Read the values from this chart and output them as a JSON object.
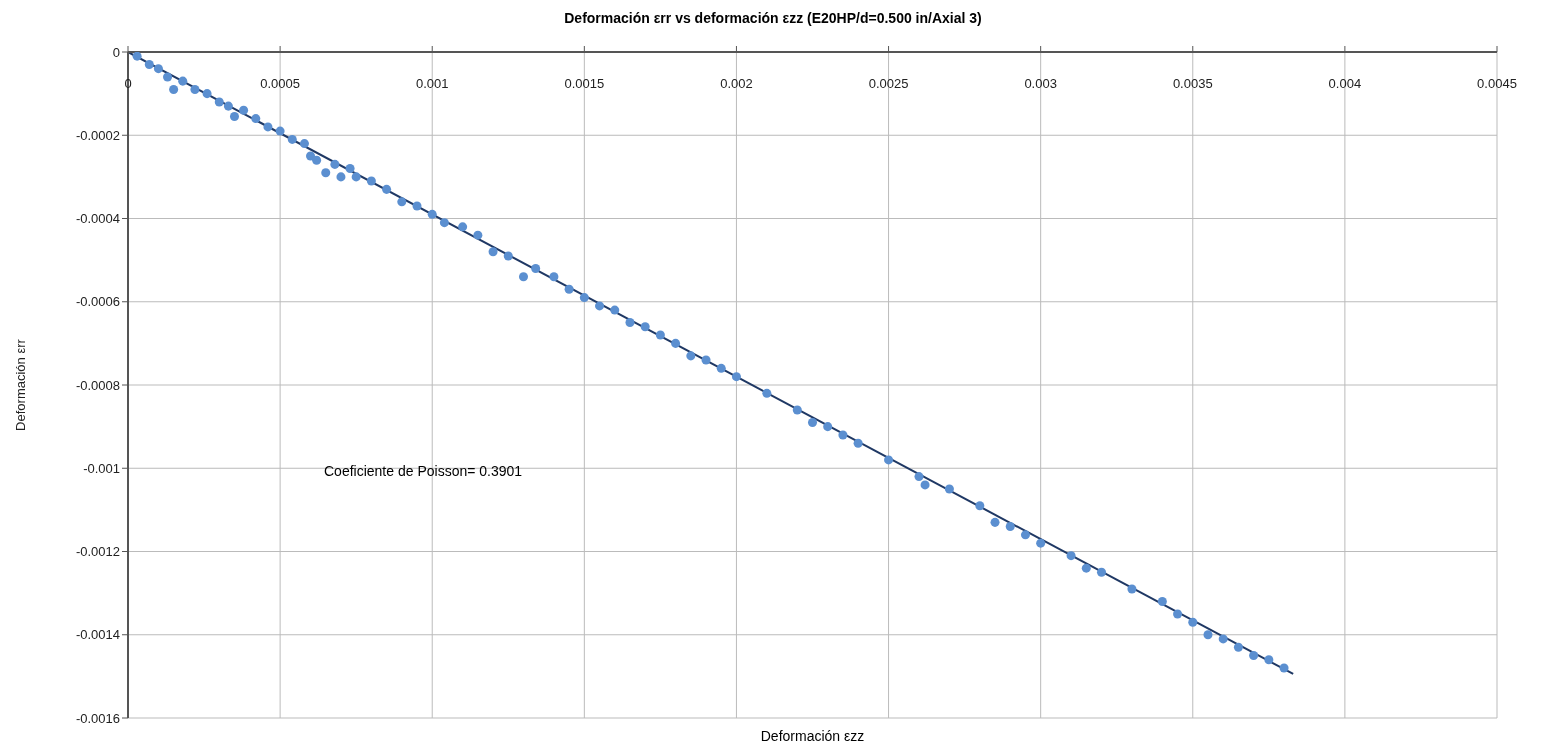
{
  "chart_data": {
    "type": "scatter",
    "title": "Deformación εrr vs deformación εzz (E20HP/d=0.500 in/Axial 3)",
    "xlabel": "Deformación εzz",
    "ylabel": "Deformación εrr",
    "xlim": [
      0,
      0.0045
    ],
    "xticks": [
      0,
      0.0005,
      0.001,
      0.0015,
      0.002,
      0.0025,
      0.003,
      0.0035,
      0.004,
      0.0045
    ],
    "ylim": [
      -0.0016,
      0
    ],
    "yticks": [
      -0.0016,
      -0.0014,
      -0.0012,
      -0.001,
      -0.0008,
      -0.0006,
      -0.0004,
      -0.0002,
      0
    ],
    "grid": true,
    "annotations": [
      "Coeficiente de Poisson= 0.3901"
    ],
    "series": [
      {
        "color": "#5b8fd0",
        "marker": "circle",
        "x": [
          3e-05,
          7e-05,
          0.0001,
          0.00013,
          0.00015,
          0.00018,
          0.00022,
          0.00026,
          0.0003,
          0.00033,
          0.00035,
          0.00038,
          0.00042,
          0.00046,
          0.0005,
          0.00054,
          0.00058,
          0.0006,
          0.00062,
          0.00065,
          0.00068,
          0.0007,
          0.00073,
          0.00075,
          0.0008,
          0.00085,
          0.0009,
          0.00095,
          0.001,
          0.00104,
          0.0011,
          0.00115,
          0.0012,
          0.00125,
          0.0013,
          0.00134,
          0.0014,
          0.00145,
          0.0015,
          0.00155,
          0.0016,
          0.00165,
          0.0017,
          0.00175,
          0.0018,
          0.00185,
          0.0019,
          0.00195,
          0.002,
          0.0021,
          0.0022,
          0.00225,
          0.0023,
          0.00235,
          0.0024,
          0.0025,
          0.0026,
          0.00262,
          0.0027,
          0.0028,
          0.00285,
          0.0029,
          0.00295,
          0.003,
          0.0031,
          0.00315,
          0.0032,
          0.0033,
          0.0034,
          0.00345,
          0.0035,
          0.00355,
          0.0036,
          0.00365,
          0.0037,
          0.00375,
          0.0038
        ],
        "values": [
          -1e-05,
          -3e-05,
          -4e-05,
          -6e-05,
          -9e-05,
          -7e-05,
          -9e-05,
          -0.0001,
          -0.00012,
          -0.00013,
          -0.000155,
          -0.00014,
          -0.00016,
          -0.00018,
          -0.00019,
          -0.00021,
          -0.00022,
          -0.00025,
          -0.00026,
          -0.00029,
          -0.00027,
          -0.0003,
          -0.00028,
          -0.0003,
          -0.00031,
          -0.00033,
          -0.00036,
          -0.00037,
          -0.00039,
          -0.00041,
          -0.00042,
          -0.00044,
          -0.00048,
          -0.00049,
          -0.00054,
          -0.00052,
          -0.00054,
          -0.00057,
          -0.00059,
          -0.00061,
          -0.00062,
          -0.00065,
          -0.00066,
          -0.00068,
          -0.0007,
          -0.00073,
          -0.00074,
          -0.00076,
          -0.00078,
          -0.00082,
          -0.00086,
          -0.00089,
          -0.0009,
          -0.00092,
          -0.00094,
          -0.00098,
          -0.00102,
          -0.00104,
          -0.00105,
          -0.00109,
          -0.00113,
          -0.00114,
          -0.00116,
          -0.00118,
          -0.00121,
          -0.00124,
          -0.00125,
          -0.00129,
          -0.00132,
          -0.00135,
          -0.00137,
          -0.0014,
          -0.00141,
          -0.00143,
          -0.00145,
          -0.00146,
          -0.00148
        ]
      },
      {
        "type": "line",
        "color": "#1f3864",
        "marker": "none",
        "line_style": "solid",
        "x": [
          0,
          0.00383
        ],
        "values": [
          0,
          -0.001494
        ]
      }
    ]
  }
}
